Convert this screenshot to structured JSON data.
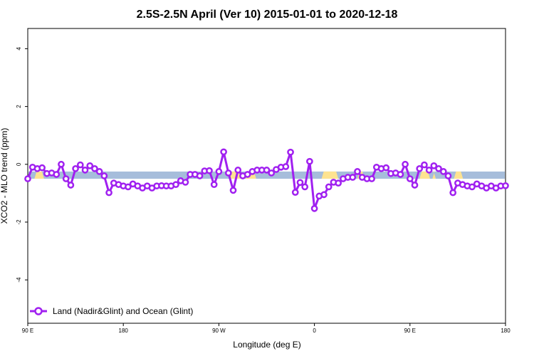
{
  "chart_data": {
    "type": "line",
    "title": "2.5S-2.5N April (Ver 10)   2015-01-01 to 2020-12-18",
    "xlabel": "Longitude (deg E)",
    "ylabel": "XCO2 - MLO trend (ppm)",
    "xlim": [
      0,
      100
    ],
    "ylim": [
      -5.5,
      4.7
    ],
    "x_ticks": [
      {
        "pos": 0,
        "label": "90 E"
      },
      {
        "pos": 20,
        "label": "180"
      },
      {
        "pos": 40,
        "label": "90 W"
      },
      {
        "pos": 60,
        "label": "0"
      },
      {
        "pos": 80,
        "label": "90 E"
      },
      {
        "pos": 100,
        "label": "180"
      }
    ],
    "y_ticks": [
      -4,
      -2,
      0,
      2,
      4
    ],
    "grid": false,
    "legend_position": "bottom-left",
    "band": {
      "y_low": -0.5,
      "y_high": -0.25,
      "ocean_color": "#a6bddb",
      "land_color": "#fee391",
      "land_segments": [
        [
          1.4,
          3.4
        ],
        [
          42.3,
          44.6
        ],
        [
          45.6,
          47.8
        ],
        [
          61.5,
          65.0
        ],
        [
          69.0,
          70.5
        ],
        [
          82.0,
          84.2
        ],
        [
          84.7,
          85.4
        ],
        [
          89.2,
          91.1
        ]
      ]
    },
    "series": [
      {
        "name": "Land (Nadir&Glint) and Ocean (Glint)",
        "color": "#a020f0",
        "x": [
          0,
          1,
          2,
          3,
          4,
          5,
          6,
          7,
          8,
          9,
          10,
          11,
          12,
          13,
          14,
          15,
          16,
          17,
          18,
          19,
          20,
          21,
          22,
          23,
          24,
          25,
          26,
          27,
          28,
          29,
          30,
          31,
          32,
          33,
          34,
          35,
          36,
          37,
          38,
          39,
          40,
          41,
          42,
          43,
          44,
          45,
          46,
          47,
          48,
          49,
          50,
          51,
          52,
          53,
          54,
          55,
          56,
          57,
          58,
          59,
          60,
          61,
          62,
          63,
          64,
          65,
          66,
          67,
          68,
          69,
          70,
          71,
          72,
          73,
          74,
          75,
          76,
          77,
          78,
          79,
          80,
          81,
          82,
          83,
          84,
          85,
          86,
          87,
          88,
          89,
          90,
          91,
          92,
          93,
          94,
          95,
          96,
          97,
          98,
          99,
          100
        ],
        "y": [
          -0.5,
          -0.1,
          -0.15,
          -0.12,
          -0.32,
          -0.3,
          -0.35,
          0.0,
          -0.5,
          -0.72,
          -0.15,
          -0.02,
          -0.2,
          -0.05,
          -0.15,
          -0.25,
          -0.4,
          -0.98,
          -0.65,
          -0.7,
          -0.75,
          -0.78,
          -0.68,
          -0.75,
          -0.82,
          -0.75,
          -0.82,
          -0.75,
          -0.74,
          -0.75,
          -0.75,
          -0.7,
          -0.57,
          -0.62,
          -0.35,
          -0.35,
          -0.4,
          -0.23,
          -0.22,
          -0.7,
          -0.25,
          0.43,
          -0.3,
          -0.9,
          -0.2,
          -0.4,
          -0.35,
          -0.25,
          -0.2,
          -0.2,
          -0.2,
          -0.3,
          -0.18,
          -0.1,
          -0.08,
          0.42,
          -0.97,
          -0.63,
          -0.78,
          0.1,
          -1.53,
          -1.1,
          -1.05,
          -0.78,
          -0.62,
          -0.65,
          -0.5,
          -0.45,
          -0.45,
          -0.25,
          -0.45,
          -0.5,
          -0.5,
          -0.1,
          -0.15,
          -0.12,
          -0.32,
          -0.3,
          -0.35,
          0.0,
          -0.5,
          -0.72,
          -0.15,
          -0.02,
          -0.2,
          -0.05,
          -0.15,
          -0.25,
          -0.4,
          -0.98,
          -0.65,
          -0.7,
          -0.75,
          -0.78,
          -0.68,
          -0.75,
          -0.82,
          -0.75,
          -0.82,
          -0.75,
          -0.74
        ]
      }
    ]
  }
}
